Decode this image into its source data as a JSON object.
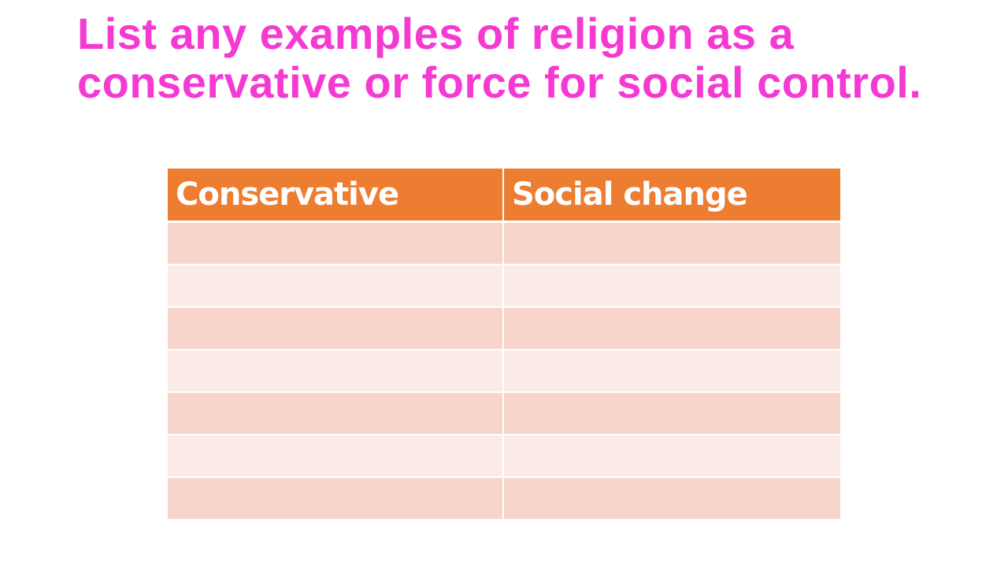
{
  "slide": {
    "title": "List any examples of religion as a conservative or force for social control.",
    "colors": {
      "title": "#f53ad3",
      "header_bg": "#ed7d31",
      "row_dark": "#f8d5cb",
      "row_light": "#fbebe6"
    }
  },
  "table": {
    "headers": [
      "Conservative",
      "Social change"
    ],
    "rows": [
      [
        "",
        ""
      ],
      [
        "",
        ""
      ],
      [
        "",
        ""
      ],
      [
        "",
        ""
      ],
      [
        "",
        ""
      ],
      [
        "",
        ""
      ],
      [
        "",
        ""
      ]
    ]
  }
}
